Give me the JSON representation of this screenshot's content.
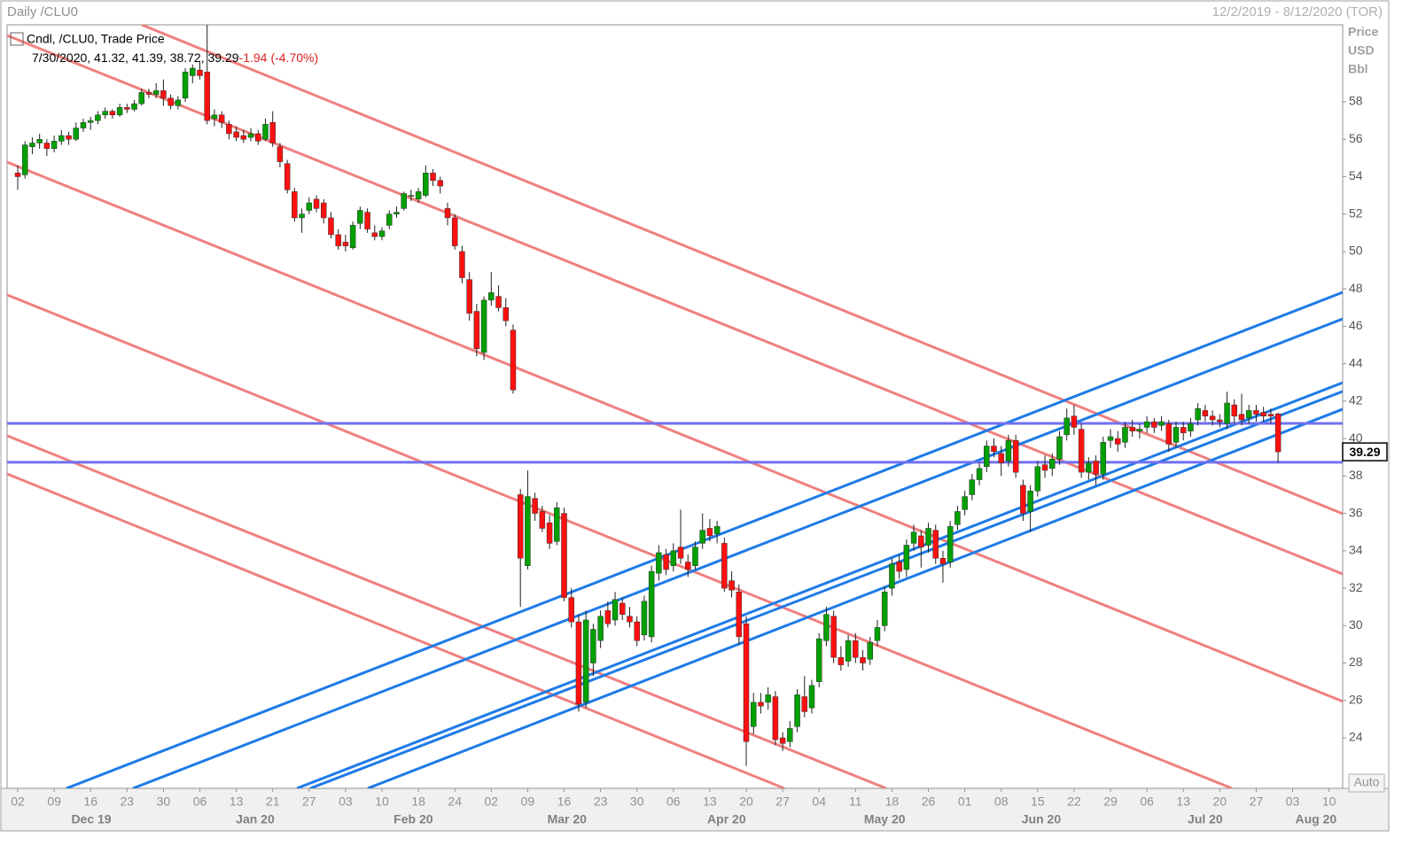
{
  "chart_data": {
    "type": "candlestick",
    "title": "Daily /CLU0",
    "date_range": "12/2/2019 - 8/12/2020 (TOR)",
    "legend": "Cndl, /CLU0, Trade Price",
    "legend_values": "7/30/2020, 41.32, 41.39, 38.72, 39.29",
    "change": "-1.94",
    "change_pct": "(-4.70%)",
    "axis_label": [
      "Price",
      "USD",
      "Bbl"
    ],
    "scale_button": "Auto",
    "last_price": 39.29,
    "up_color": "#00a000",
    "down_color": "#ff1010",
    "red_line_color": "#f08080",
    "blue_line_color": "#1e7be8",
    "horizontal_line_color": "#7070f0",
    "xlim": [
      -1.46,
      181.87
    ],
    "ylim": [
      21.3,
      62.12
    ],
    "yticks": [
      24,
      26,
      28,
      30,
      32,
      34,
      36,
      38,
      40,
      42,
      44,
      46,
      48,
      50,
      52,
      54,
      56,
      58
    ],
    "xticks": [
      {
        "value": 0,
        "label": "02"
      },
      {
        "value": 5,
        "label": "09"
      },
      {
        "value": 10,
        "label": "16"
      },
      {
        "value": 15,
        "label": "23"
      },
      {
        "value": 20,
        "label": "30"
      },
      {
        "value": 25,
        "label": "06"
      },
      {
        "value": 30,
        "label": "13"
      },
      {
        "value": 35,
        "label": "21"
      },
      {
        "value": 40,
        "label": "27"
      },
      {
        "value": 45,
        "label": "03"
      },
      {
        "value": 50,
        "label": "10"
      },
      {
        "value": 55,
        "label": "18"
      },
      {
        "value": 60,
        "label": "24"
      },
      {
        "value": 65,
        "label": "02"
      },
      {
        "value": 70,
        "label": "09"
      },
      {
        "value": 75,
        "label": "16"
      },
      {
        "value": 80,
        "label": "23"
      },
      {
        "value": 85,
        "label": "30"
      },
      {
        "value": 90,
        "label": "06"
      },
      {
        "value": 95,
        "label": "13"
      },
      {
        "value": 100,
        "label": "20"
      },
      {
        "value": 105,
        "label": "27"
      },
      {
        "value": 110,
        "label": "04"
      },
      {
        "value": 115,
        "label": "11"
      },
      {
        "value": 120,
        "label": "18"
      },
      {
        "value": 125,
        "label": "26"
      },
      {
        "value": 130,
        "label": "01"
      },
      {
        "value": 135,
        "label": "08"
      },
      {
        "value": 140,
        "label": "15"
      },
      {
        "value": 145,
        "label": "22"
      },
      {
        "value": 150,
        "label": "29"
      },
      {
        "value": 155,
        "label": "06"
      },
      {
        "value": 160,
        "label": "13"
      },
      {
        "value": 165,
        "label": "20"
      },
      {
        "value": 170,
        "label": "27"
      },
      {
        "value": 175,
        "label": "03"
      },
      {
        "value": 180,
        "label": "10"
      }
    ],
    "month_ticks": [
      {
        "value": 10.1,
        "label": "Dec 19"
      },
      {
        "value": 32.6,
        "label": "Jan 20"
      },
      {
        "value": 54.3,
        "label": "Feb 20"
      },
      {
        "value": 75.4,
        "label": "Mar 20"
      },
      {
        "value": 97.3,
        "label": "Apr 20"
      },
      {
        "value": 119,
        "label": "May 20"
      },
      {
        "value": 140.5,
        "label": "Jun 20"
      },
      {
        "value": 163,
        "label": "Jul 20"
      },
      {
        "value": 178.2,
        "label": "Aug 20"
      }
    ],
    "red_lines": [
      [
        17.03,
        62.12,
        181.87,
        35.98
      ],
      [
        -1.46,
        61.55,
        181.87,
        32.76
      ],
      [
        -1.46,
        54.78,
        181.87,
        25.95
      ],
      [
        -1.46,
        47.68,
        166.67,
        21.3
      ],
      [
        -1.46,
        40.15,
        119.22,
        21.3
      ],
      [
        -1.46,
        38.11,
        105.23,
        21.3
      ]
    ],
    "blue_lines": [
      [
        6.69,
        21.3,
        181.87,
        47.82
      ],
      [
        15.82,
        21.3,
        181.87,
        46.4
      ],
      [
        38.32,
        21.3,
        181.87,
        42.99
      ],
      [
        40.15,
        21.3,
        181.87,
        42.52
      ],
      [
        48.05,
        21.3,
        181.87,
        41.57
      ]
    ],
    "horizontal_lines": [
      40.81,
      38.73
    ],
    "ohlc": [
      [
        54.2,
        54.6,
        53.3,
        54.0
      ],
      [
        54.1,
        55.9,
        53.9,
        55.7
      ],
      [
        55.6,
        56.1,
        55.2,
        55.8
      ],
      [
        55.8,
        56.3,
        55.5,
        56.0
      ],
      [
        55.8,
        56.0,
        55.1,
        55.5
      ],
      [
        55.5,
        56.2,
        55.3,
        55.9
      ],
      [
        55.9,
        56.5,
        55.7,
        56.2
      ],
      [
        56.2,
        56.4,
        55.7,
        56.0
      ],
      [
        56.0,
        56.9,
        55.9,
        56.6
      ],
      [
        56.6,
        57.1,
        56.4,
        56.9
      ],
      [
        56.9,
        57.2,
        56.5,
        57.0
      ],
      [
        57.0,
        57.5,
        56.8,
        57.3
      ],
      [
        57.3,
        57.7,
        57.1,
        57.5
      ],
      [
        57.5,
        57.6,
        57.1,
        57.3
      ],
      [
        57.3,
        57.9,
        57.2,
        57.7
      ],
      [
        57.7,
        57.9,
        57.4,
        57.6
      ],
      [
        57.6,
        58.1,
        57.5,
        57.9
      ],
      [
        57.9,
        58.7,
        57.8,
        58.5
      ],
      [
        58.5,
        58.7,
        58.2,
        58.4
      ],
      [
        58.4,
        59.0,
        58.2,
        58.6
      ],
      [
        58.6,
        59.2,
        57.8,
        58.2
      ],
      [
        58.2,
        58.4,
        57.6,
        57.8
      ],
      [
        57.8,
        58.3,
        57.6,
        58.1
      ],
      [
        58.2,
        59.8,
        58.0,
        59.6
      ],
      [
        59.4,
        60.0,
        59.0,
        59.8
      ],
      [
        59.7,
        60.2,
        59.2,
        59.4
      ],
      [
        59.6,
        62.2,
        56.8,
        57.0
      ],
      [
        57.1,
        57.6,
        56.7,
        57.3
      ],
      [
        57.3,
        57.5,
        56.6,
        56.9
      ],
      [
        56.8,
        57.0,
        56.0,
        56.3
      ],
      [
        56.4,
        56.7,
        55.9,
        56.1
      ],
      [
        56.2,
        56.5,
        55.8,
        56.0
      ],
      [
        56.1,
        56.6,
        55.9,
        56.3
      ],
      [
        56.3,
        56.5,
        55.7,
        55.9
      ],
      [
        56.0,
        57.1,
        55.9,
        56.8
      ],
      [
        56.9,
        57.5,
        55.6,
        55.8
      ],
      [
        55.6,
        55.8,
        54.5,
        54.8
      ],
      [
        54.7,
        54.9,
        53.1,
        53.3
      ],
      [
        53.2,
        53.4,
        51.6,
        51.8
      ],
      [
        51.8,
        52.3,
        51.0,
        52.0
      ],
      [
        52.2,
        52.9,
        52.0,
        52.6
      ],
      [
        52.8,
        53.0,
        52.1,
        52.3
      ],
      [
        52.6,
        52.8,
        51.5,
        51.8
      ],
      [
        51.8,
        52.1,
        50.7,
        50.9
      ],
      [
        50.9,
        51.2,
        50.1,
        50.3
      ],
      [
        50.5,
        50.9,
        50.0,
        50.3
      ],
      [
        50.2,
        51.6,
        50.1,
        51.4
      ],
      [
        51.5,
        52.4,
        51.2,
        52.2
      ],
      [
        52.1,
        52.3,
        51.0,
        51.2
      ],
      [
        51.0,
        51.4,
        50.6,
        50.8
      ],
      [
        50.8,
        51.3,
        50.6,
        51.1
      ],
      [
        51.4,
        52.2,
        51.2,
        52.0
      ],
      [
        52.0,
        52.4,
        51.8,
        52.1
      ],
      [
        52.3,
        53.2,
        52.2,
        53.1
      ],
      [
        53.0,
        53.3,
        52.7,
        53.0
      ],
      [
        52.8,
        53.4,
        52.6,
        53.2
      ],
      [
        53.0,
        54.6,
        52.9,
        54.2
      ],
      [
        54.2,
        54.4,
        53.5,
        53.8
      ],
      [
        53.8,
        54.0,
        53.1,
        53.5
      ],
      [
        52.3,
        52.6,
        51.4,
        51.8
      ],
      [
        51.8,
        52.0,
        50.1,
        50.3
      ],
      [
        50.0,
        50.3,
        48.3,
        48.6
      ],
      [
        48.5,
        48.9,
        46.3,
        46.7
      ],
      [
        46.8,
        47.2,
        44.4,
        44.8
      ],
      [
        44.6,
        47.6,
        44.2,
        47.4
      ],
      [
        47.4,
        48.9,
        47.1,
        47.8
      ],
      [
        47.6,
        48.2,
        46.8,
        47.0
      ],
      [
        47.0,
        47.5,
        46.0,
        46.3
      ],
      [
        45.8,
        46.1,
        42.4,
        42.6
      ],
      [
        37.0,
        37.3,
        31.0,
        33.6
      ],
      [
        33.2,
        38.3,
        33.0,
        36.9
      ],
      [
        36.8,
        37.1,
        35.6,
        36.0
      ],
      [
        36.1,
        36.4,
        35.0,
        35.2
      ],
      [
        35.5,
        35.9,
        34.1,
        34.4
      ],
      [
        34.5,
        36.6,
        34.3,
        36.3
      ],
      [
        36.0,
        36.3,
        31.3,
        31.5
      ],
      [
        31.5,
        32.0,
        29.9,
        30.2
      ],
      [
        30.2,
        30.6,
        25.4,
        25.8
      ],
      [
        25.9,
        30.8,
        25.6,
        30.3
      ],
      [
        28.0,
        30.1,
        27.3,
        29.8
      ],
      [
        29.2,
        30.8,
        28.8,
        30.5
      ],
      [
        30.8,
        31.3,
        29.9,
        30.1
      ],
      [
        30.3,
        31.8,
        30.0,
        31.4
      ],
      [
        31.2,
        31.5,
        30.3,
        30.6
      ],
      [
        30.5,
        31.0,
        29.9,
        30.2
      ],
      [
        30.2,
        30.5,
        28.9,
        29.2
      ],
      [
        29.5,
        31.6,
        29.2,
        31.3
      ],
      [
        29.4,
        33.2,
        29.1,
        32.9
      ],
      [
        32.8,
        34.3,
        32.4,
        33.9
      ],
      [
        33.8,
        34.1,
        32.7,
        33.0
      ],
      [
        33.2,
        34.4,
        32.9,
        34.0
      ],
      [
        34.2,
        36.2,
        33.3,
        33.6
      ],
      [
        33.4,
        33.8,
        32.6,
        33.0
      ],
      [
        33.2,
        34.5,
        33.0,
        34.2
      ],
      [
        34.4,
        36.0,
        34.1,
        35.1
      ],
      [
        35.2,
        35.7,
        34.5,
        34.8
      ],
      [
        34.9,
        35.6,
        34.4,
        35.3
      ],
      [
        34.4,
        34.7,
        31.8,
        32.0
      ],
      [
        32.4,
        32.9,
        31.5,
        31.9
      ],
      [
        31.8,
        32.2,
        29.0,
        29.4
      ],
      [
        30.1,
        30.5,
        22.5,
        23.8
      ],
      [
        24.6,
        26.4,
        24.2,
        25.9
      ],
      [
        25.9,
        26.4,
        25.3,
        25.7
      ],
      [
        25.9,
        26.7,
        25.5,
        26.3
      ],
      [
        26.2,
        26.5,
        23.6,
        23.9
      ],
      [
        24.0,
        24.3,
        23.3,
        23.7
      ],
      [
        23.8,
        24.9,
        23.5,
        24.5
      ],
      [
        24.6,
        26.6,
        24.3,
        26.3
      ],
      [
        26.2,
        27.3,
        25.1,
        25.4
      ],
      [
        25.6,
        27.1,
        25.3,
        26.8
      ],
      [
        27.0,
        29.6,
        26.7,
        29.3
      ],
      [
        29.2,
        31.0,
        28.9,
        30.6
      ],
      [
        30.5,
        30.8,
        28.0,
        28.3
      ],
      [
        28.3,
        28.9,
        27.6,
        27.9
      ],
      [
        28.1,
        29.5,
        27.8,
        29.2
      ],
      [
        29.2,
        29.6,
        28.0,
        28.3
      ],
      [
        28.3,
        28.7,
        27.6,
        28.0
      ],
      [
        28.2,
        29.4,
        27.9,
        29.1
      ],
      [
        29.2,
        30.3,
        28.9,
        29.9
      ],
      [
        30.0,
        32.1,
        29.7,
        31.8
      ],
      [
        32.0,
        33.6,
        31.6,
        33.3
      ],
      [
        33.4,
        33.8,
        32.5,
        32.9
      ],
      [
        33.0,
        34.6,
        32.6,
        34.3
      ],
      [
        34.4,
        35.4,
        34.0,
        35.0
      ],
      [
        34.8,
        35.1,
        33.1,
        34.2
      ],
      [
        34.3,
        35.5,
        33.9,
        35.2
      ],
      [
        35.1,
        35.4,
        33.3,
        33.6
      ],
      [
        33.6,
        34.0,
        32.3,
        33.3
      ],
      [
        33.4,
        35.6,
        33.1,
        35.3
      ],
      [
        35.4,
        36.4,
        35.1,
        36.1
      ],
      [
        36.2,
        37.2,
        35.9,
        36.9
      ],
      [
        37.0,
        38.1,
        36.7,
        37.8
      ],
      [
        37.8,
        38.7,
        37.5,
        38.4
      ],
      [
        38.5,
        39.9,
        38.2,
        39.6
      ],
      [
        39.6,
        40.0,
        39.0,
        39.3
      ],
      [
        39.2,
        39.6,
        38.0,
        38.7
      ],
      [
        38.8,
        40.2,
        38.5,
        39.9
      ],
      [
        39.9,
        40.2,
        37.9,
        38.2
      ],
      [
        37.5,
        37.8,
        35.6,
        36.0
      ],
      [
        36.1,
        37.5,
        35.0,
        37.2
      ],
      [
        37.2,
        38.8,
        36.9,
        38.5
      ],
      [
        38.6,
        39.1,
        37.9,
        38.3
      ],
      [
        38.4,
        39.2,
        38.0,
        38.9
      ],
      [
        38.9,
        40.4,
        38.6,
        40.1
      ],
      [
        40.2,
        41.6,
        39.9,
        41.1
      ],
      [
        41.2,
        41.8,
        40.2,
        40.6
      ],
      [
        40.5,
        40.8,
        37.9,
        38.2
      ],
      [
        38.2,
        39.0,
        37.8,
        38.7
      ],
      [
        38.8,
        39.1,
        37.5,
        38.1
      ],
      [
        38.1,
        40.1,
        37.8,
        39.8
      ],
      [
        39.9,
        40.5,
        39.5,
        40.1
      ],
      [
        40.0,
        40.4,
        39.3,
        39.7
      ],
      [
        39.8,
        40.9,
        39.5,
        40.6
      ],
      [
        40.6,
        41.0,
        40.1,
        40.4
      ],
      [
        40.4,
        40.8,
        40.0,
        40.5
      ],
      [
        40.6,
        41.2,
        40.3,
        40.9
      ],
      [
        40.9,
        41.1,
        40.3,
        40.6
      ],
      [
        40.7,
        41.2,
        40.4,
        40.9
      ],
      [
        40.8,
        41.0,
        39.3,
        39.7
      ],
      [
        39.8,
        40.9,
        39.5,
        40.6
      ],
      [
        40.6,
        40.9,
        39.9,
        40.3
      ],
      [
        40.4,
        41.1,
        40.1,
        40.8
      ],
      [
        41.0,
        41.9,
        40.7,
        41.6
      ],
      [
        41.5,
        41.8,
        40.9,
        41.2
      ],
      [
        41.2,
        41.5,
        40.7,
        41.0
      ],
      [
        41.0,
        41.3,
        40.6,
        40.9
      ],
      [
        40.8,
        42.5,
        40.5,
        41.9
      ],
      [
        41.8,
        42.1,
        40.8,
        41.2
      ],
      [
        41.3,
        42.4,
        40.7,
        41.0
      ],
      [
        41.1,
        41.8,
        40.8,
        41.5
      ],
      [
        41.5,
        41.8,
        40.9,
        41.3
      ],
      [
        41.4,
        41.7,
        40.9,
        41.2
      ],
      [
        41.3,
        41.6,
        40.8,
        41.2
      ],
      [
        41.32,
        41.39,
        38.72,
        39.29
      ]
    ]
  }
}
